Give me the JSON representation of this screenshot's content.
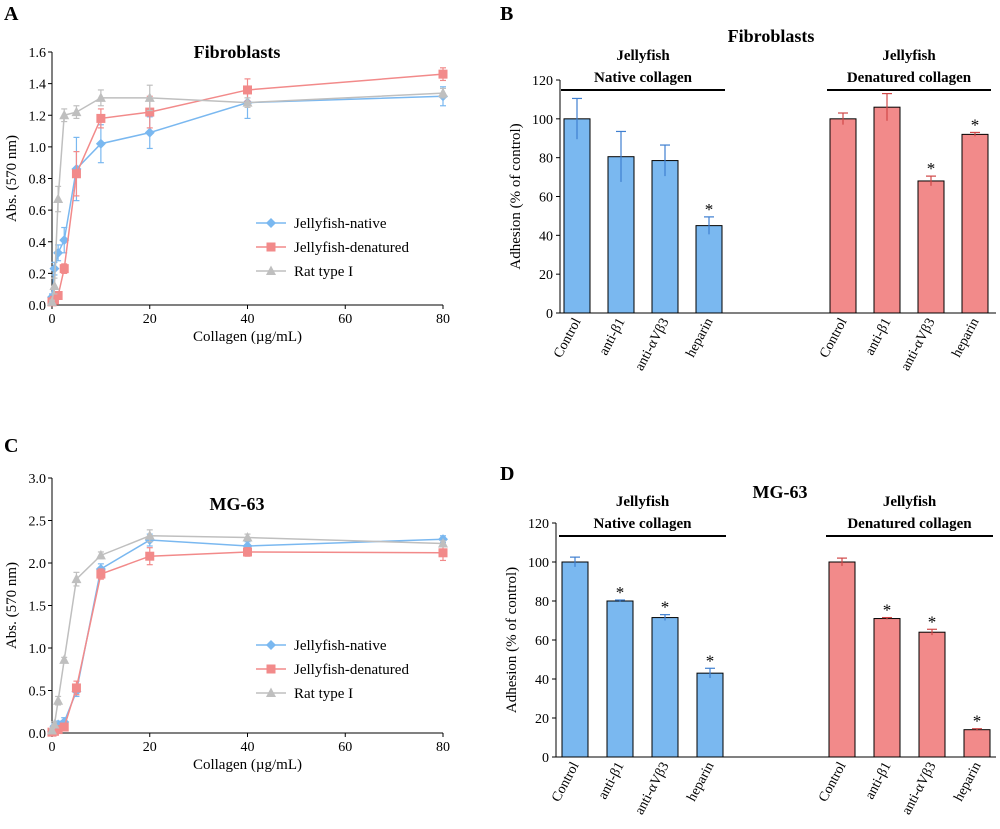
{
  "chart_data": [
    {
      "panel": "A",
      "type": "line",
      "title": "Fibroblasts",
      "xlabel": "Collagen (µg/mL)",
      "ylabel": "Abs. (570 nm)",
      "xlim": [
        0,
        80
      ],
      "ylim": [
        0,
        1.6
      ],
      "xticks": [
        0,
        20,
        40,
        60,
        80
      ],
      "yticks": [
        "0.0",
        "0.2",
        "0.4",
        "0.6",
        "0.8",
        "1.0",
        "1.2",
        "1.4",
        "1.6"
      ],
      "legend_position": "center-right",
      "series": [
        {
          "name": "Jellyfish-native",
          "color": "#7ab8f0",
          "marker": "diamond",
          "x": [
            0,
            0.5,
            1.25,
            2.5,
            5,
            10,
            20,
            40,
            80
          ],
          "y": [
            0.05,
            0.23,
            0.33,
            0.41,
            0.86,
            1.02,
            1.09,
            1.28,
            1.32
          ],
          "err": [
            0.02,
            0.04,
            0.05,
            0.08,
            0.2,
            0.12,
            0.1,
            0.1,
            0.06
          ]
        },
        {
          "name": "Jellyfish-denatured",
          "color": "#f28a8a",
          "marker": "square",
          "x": [
            0,
            0.5,
            1.25,
            2.5,
            5,
            10,
            20,
            40,
            80
          ],
          "y": [
            0.02,
            0.03,
            0.06,
            0.23,
            0.83,
            1.18,
            1.22,
            1.36,
            1.46
          ],
          "err": [
            0.01,
            0.01,
            0.02,
            0.03,
            0.14,
            0.06,
            0.1,
            0.07,
            0.04
          ]
        },
        {
          "name": "Rat type I",
          "color": "#bfbfbf",
          "marker": "triangle",
          "x": [
            0,
            0.5,
            1.25,
            2.5,
            5,
            10,
            20,
            40,
            80
          ],
          "y": [
            0.02,
            0.12,
            0.67,
            1.2,
            1.22,
            1.31,
            1.31,
            1.28,
            1.34
          ],
          "err": [
            0.01,
            0.05,
            0.08,
            0.04,
            0.04,
            0.05,
            0.08,
            0.03,
            0.03
          ]
        }
      ]
    },
    {
      "panel": "B",
      "type": "bar",
      "title": "Fibroblasts",
      "ylabel": "Adhesion (% of control)",
      "ylim": [
        0,
        120
      ],
      "yticks": [
        "0",
        "20",
        "40",
        "60",
        "80",
        "100",
        "120"
      ],
      "groups": [
        {
          "label_line1": "Jellyfish",
          "label_line2": "Native collagen",
          "color": "#7ab8f0",
          "categories": [
            "Control",
            "anti-β1",
            "anti-αVβ3",
            "heparin"
          ],
          "values": [
            100,
            80.5,
            78.5,
            45
          ],
          "err": [
            10.5,
            13,
            8,
            4.5
          ],
          "significant": [
            false,
            false,
            false,
            true
          ]
        },
        {
          "label_line1": "Jellyfish",
          "label_line2": "Denatured collagen",
          "color": "#f28a8a",
          "categories": [
            "Control",
            "anti-β1",
            "anti-αVβ3",
            "heparin"
          ],
          "values": [
            100,
            106,
            68,
            92
          ],
          "err": [
            3,
            7,
            2.5,
            1
          ],
          "significant": [
            false,
            false,
            true,
            true
          ]
        }
      ]
    },
    {
      "panel": "C",
      "type": "line",
      "title": "MG-63",
      "xlabel": "Collagen (µg/mL)",
      "ylabel": "Abs. (570 nm)",
      "xlim": [
        0,
        80
      ],
      "ylim": [
        0,
        3.0
      ],
      "xticks": [
        0,
        20,
        40,
        60,
        80
      ],
      "yticks": [
        "0.0",
        "0.5",
        "1.0",
        "1.5",
        "2.0",
        "2.5",
        "3.0"
      ],
      "legend_position": "center-right",
      "series": [
        {
          "name": "Jellyfish-native",
          "color": "#7ab8f0",
          "marker": "diamond",
          "x": [
            0,
            0.5,
            1.25,
            2.5,
            5,
            10,
            20,
            40,
            80
          ],
          "y": [
            0.02,
            0.08,
            0.1,
            0.13,
            0.49,
            1.93,
            2.27,
            2.2,
            2.28
          ],
          "err": [
            0.02,
            0.03,
            0.04,
            0.05,
            0.06,
            0.06,
            0.07,
            0.05,
            0.04
          ]
        },
        {
          "name": "Jellyfish-denatured",
          "color": "#f28a8a",
          "marker": "square",
          "x": [
            0,
            0.5,
            1.25,
            2.5,
            5,
            10,
            20,
            40,
            80
          ],
          "y": [
            0.01,
            0.02,
            0.04,
            0.07,
            0.53,
            1.87,
            2.08,
            2.13,
            2.12
          ],
          "err": [
            0.01,
            0.01,
            0.02,
            0.03,
            0.08,
            0.06,
            0.1,
            0.05,
            0.09
          ]
        },
        {
          "name": "Rat type I",
          "color": "#bfbfbf",
          "marker": "triangle",
          "x": [
            0,
            0.5,
            1.25,
            2.5,
            5,
            10,
            20,
            40,
            80
          ],
          "y": [
            0.03,
            0.1,
            0.38,
            0.86,
            1.81,
            2.09,
            2.32,
            2.3,
            2.23
          ],
          "err": [
            0.02,
            0.03,
            0.05,
            0.03,
            0.08,
            0.04,
            0.07,
            0.04,
            0.03
          ]
        }
      ]
    },
    {
      "panel": "D",
      "type": "bar",
      "title": "MG-63",
      "ylabel": "Adhesion (% of control)",
      "ylim": [
        0,
        120
      ],
      "yticks": [
        "0",
        "20",
        "40",
        "60",
        "80",
        "100",
        "120"
      ],
      "groups": [
        {
          "label_line1": "Jellyfish",
          "label_line2": "Native collagen",
          "color": "#7ab8f0",
          "categories": [
            "Control",
            "anti-β1",
            "anti-αVβ3",
            "heparin"
          ],
          "values": [
            100,
            80,
            71.5,
            43
          ],
          "err": [
            2.5,
            0.5,
            1.5,
            2.5
          ],
          "significant": [
            false,
            true,
            true,
            true
          ]
        },
        {
          "label_line1": "Jellyfish",
          "label_line2": "Denatured collagen",
          "color": "#f28a8a",
          "categories": [
            "Control",
            "anti-β1",
            "anti-αVβ3",
            "heparin"
          ],
          "values": [
            100,
            71,
            64,
            14
          ],
          "err": [
            2,
            0.5,
            1.5,
            0.5
          ],
          "significant": [
            false,
            true,
            true,
            true
          ]
        }
      ]
    }
  ],
  "panel_letters": [
    "A",
    "B",
    "C",
    "D"
  ],
  "significance_mark": "*"
}
